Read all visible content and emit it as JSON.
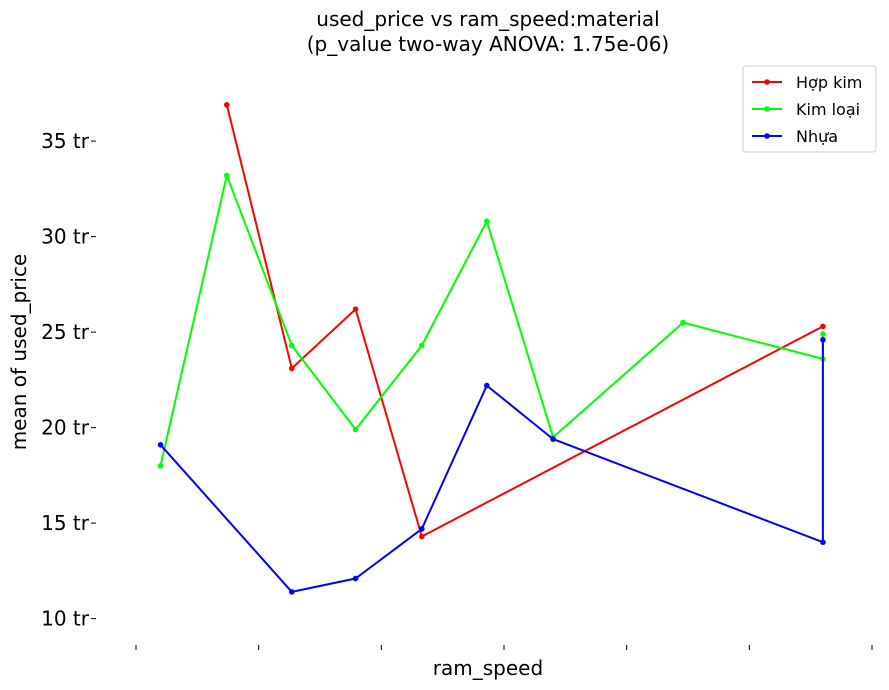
{
  "chart_data": {
    "type": "line",
    "title": "used_price vs ram_speed:material",
    "subtitle": "(p_value two-way ANOVA: 1.75e-06)",
    "xlabel": "ram_speed",
    "ylabel": "mean of used_price",
    "ylim": [
      9.3,
      38.2
    ],
    "yticks": [
      10,
      15,
      20,
      25,
      30,
      35
    ],
    "ytick_labels": [
      "10 tr",
      "15 tr",
      "20 tr",
      "25 tr",
      "30 tr",
      "35 tr"
    ],
    "xlim": [
      0,
      6
    ],
    "xticks": [
      0,
      1,
      2,
      3,
      4,
      5,
      6
    ],
    "legend_position": "top-right",
    "grid": false,
    "series": [
      {
        "name": "Hợp kim",
        "color": "#ff0000",
        "x": [
          0.74,
          1.27,
          1.79,
          2.33,
          5.6
        ],
        "y": [
          36.9,
          23.1,
          26.2,
          14.3,
          25.3
        ]
      },
      {
        "name": "Kim loại",
        "color": "#00ff00",
        "x": [
          0.2,
          0.74,
          1.27,
          1.79,
          2.33,
          2.86,
          3.4,
          4.46,
          5.6,
          5.6
        ],
        "y": [
          18.0,
          33.2,
          24.3,
          19.9,
          24.3,
          30.8,
          19.5,
          25.5,
          23.6,
          24.9
        ]
      },
      {
        "name": "Nhựa",
        "color": "#0000ff",
        "x": [
          0.2,
          1.27,
          1.79,
          2.33,
          2.86,
          3.4,
          5.6,
          5.6
        ],
        "y": [
          19.1,
          11.4,
          12.1,
          14.7,
          22.2,
          19.4,
          14.0,
          24.6
        ]
      }
    ]
  }
}
